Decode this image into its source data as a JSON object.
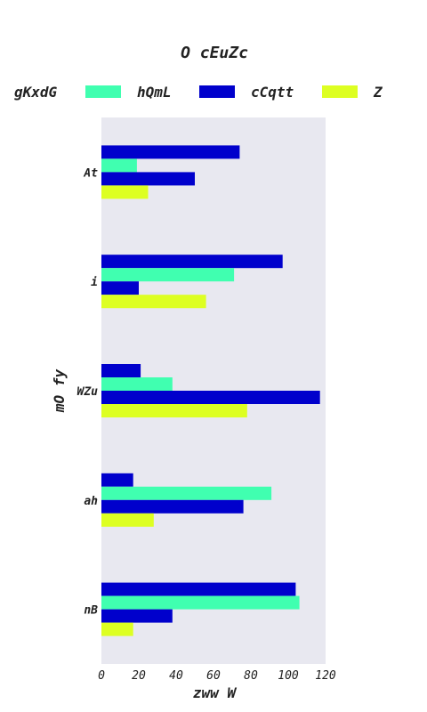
{
  "chart_data": {
    "type": "bar",
    "orientation": "horizontal",
    "title": "O cEuZc",
    "xlabel": "zww W",
    "ylabel": "mO fy",
    "xlim": [
      0,
      120
    ],
    "x_ticks": [
      0,
      20,
      40,
      60,
      80,
      100,
      120
    ],
    "categories": [
      "At",
      "i",
      "WZu",
      "ah",
      "nB"
    ],
    "series": [
      {
        "name": "gKxdG",
        "color": "#0000cc",
        "values": [
          74,
          97,
          21,
          17,
          104
        ]
      },
      {
        "name": "hQmL",
        "color": "#40ffb0",
        "values": [
          19,
          71,
          38,
          91,
          106
        ]
      },
      {
        "name": "cCqtt",
        "color": "#0000cc",
        "values": [
          50,
          20,
          117,
          76,
          38
        ]
      },
      {
        "name": "Z",
        "color": "#ddff22",
        "values": [
          25,
          56,
          78,
          28,
          17
        ]
      }
    ],
    "plot_background": "#e8e8f0",
    "grid": false,
    "legend_position": "top"
  }
}
